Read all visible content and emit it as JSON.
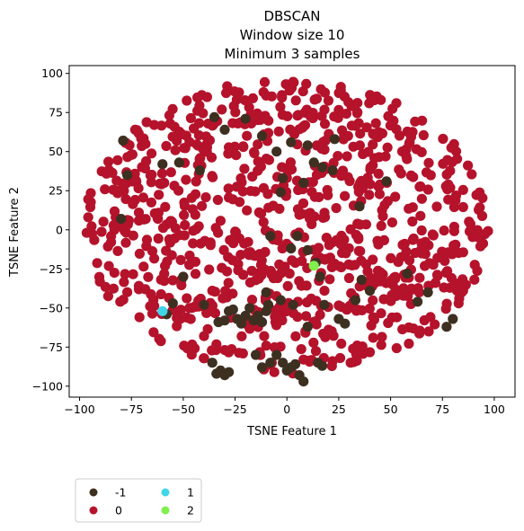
{
  "chart_data": {
    "type": "scatter",
    "title": [
      "DBSCAN",
      "Window size 10",
      "Minimum 3 samples"
    ],
    "xlabel": "TSNE Feature 1",
    "ylabel": "TSNE Feature 2",
    "xlim": [
      -105,
      110
    ],
    "ylim": [
      -107,
      105
    ],
    "xticks": [
      -100,
      -75,
      -50,
      -25,
      0,
      25,
      50,
      75,
      100
    ],
    "yticks": [
      -100,
      -75,
      -50,
      -25,
      0,
      25,
      50,
      75,
      100
    ],
    "grid": false,
    "legend_position": "below-left",
    "series": [
      {
        "name": "-1",
        "color": "#3d3021",
        "points": [
          [
            -79,
            57
          ],
          [
            -77,
            35
          ],
          [
            -80,
            7
          ],
          [
            -60,
            42
          ],
          [
            -42,
            38
          ],
          [
            -52,
            43
          ],
          [
            -35,
            72
          ],
          [
            -30,
            64
          ],
          [
            -20,
            71
          ],
          [
            -12,
            60
          ],
          [
            -5,
            50
          ],
          [
            -3,
            24
          ],
          [
            -2,
            33
          ],
          [
            2,
            56
          ],
          [
            8,
            30
          ],
          [
            10,
            54
          ],
          [
            13,
            43
          ],
          [
            17,
            40
          ],
          [
            22,
            38
          ],
          [
            23,
            58
          ],
          [
            35,
            15
          ],
          [
            48,
            31
          ],
          [
            -8,
            -4
          ],
          [
            2,
            -12
          ],
          [
            5,
            -4
          ],
          [
            10,
            -13
          ],
          [
            14,
            -21
          ],
          [
            16,
            -30
          ],
          [
            18,
            -48
          ],
          [
            25,
            -57
          ],
          [
            28,
            -60
          ],
          [
            33,
            -45
          ],
          [
            36,
            -32
          ],
          [
            40,
            -39
          ],
          [
            58,
            -28
          ],
          [
            63,
            -46
          ],
          [
            68,
            -40
          ],
          [
            77,
            -62
          ],
          [
            80,
            -57
          ],
          [
            -55,
            -47
          ],
          [
            -58,
            -54
          ],
          [
            -33,
            -59
          ],
          [
            -30,
            -58
          ],
          [
            -28,
            -52
          ],
          [
            -26,
            -51
          ],
          [
            -24,
            -57
          ],
          [
            -22,
            -60
          ],
          [
            -20,
            -55
          ],
          [
            -18,
            -50
          ],
          [
            -16,
            -58
          ],
          [
            -14,
            -55
          ],
          [
            -12,
            -59
          ],
          [
            -10,
            -52
          ],
          [
            -9,
            -48
          ],
          [
            -36,
            -85
          ],
          [
            -34,
            -92
          ],
          [
            -32,
            -90
          ],
          [
            -30,
            -93
          ],
          [
            -28,
            -91
          ],
          [
            -15,
            -80
          ],
          [
            -12,
            -88
          ],
          [
            -8,
            -85
          ],
          [
            -5,
            -80
          ],
          [
            -2,
            -85
          ],
          [
            0,
            -90
          ],
          [
            2,
            -88
          ],
          [
            4,
            -86
          ],
          [
            6,
            -93
          ],
          [
            8,
            -97
          ],
          [
            15,
            -85
          ],
          [
            17,
            -87
          ],
          [
            10,
            -62
          ],
          [
            -3,
            -45
          ],
          [
            -10,
            -40
          ],
          [
            3,
            -48
          ],
          [
            -40,
            -48
          ],
          [
            -50,
            -30
          ]
        ]
      },
      {
        "name": "0",
        "color": "#b5122b",
        "points": []
      },
      {
        "name": "1",
        "color": "#3fd6e8",
        "points": [
          [
            -60,
            -52
          ]
        ]
      },
      {
        "name": "2",
        "color": "#7ff04d",
        "points": [
          [
            13,
            -23
          ]
        ]
      }
    ]
  }
}
